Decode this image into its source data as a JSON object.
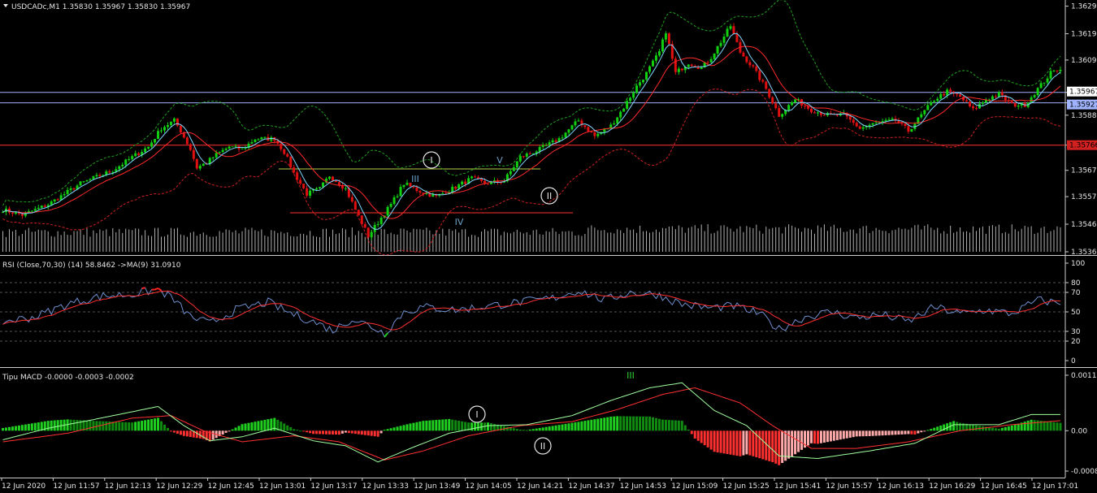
{
  "colors": {
    "background": "#000000",
    "bull_candle": "#10d010",
    "bear_candle": "#e01010",
    "ma_fast": "#7fd7ff",
    "ma_slow": "#ff2a2a",
    "band_upper": "#1fa01f",
    "band_lower": "#d02020",
    "volume": "#b0b0b0",
    "rsi_line": "#6f8fd0",
    "rsi_signal": "#ff3030",
    "macd_line": "#a0ffa0",
    "signal_line": "#ff3030",
    "hist_up": "#20d020",
    "hist_down": "#ff3030",
    "wave_label": "#e6e6e6",
    "level_line": "#ff3030",
    "bid_line": "#9fb3ff",
    "ask_line": "#9fb3ff"
  },
  "header": {
    "main": "USDCADc,M1  1.35830 1.35967 1.35830 1.35967",
    "rsi": "RSI (Close,70,30) (14) 58.8462  ->MA(9) 31.0910",
    "macd": "Tipu MACD -0.0000 -0.0003 -0.0002"
  },
  "chart_data": [
    {
      "type": "candlestick",
      "symbol": "USDCADc",
      "timeframe": "M1",
      "ylim": [
        1.3536,
        1.363
      ],
      "y_ticks": [
        "1.36295",
        "1.36190",
        "1.36090",
        "1.35967",
        "1.35927",
        "1.35880",
        "1.35766",
        "1.35670",
        "1.35570",
        "1.35465",
        "1.35360"
      ],
      "price_tags": {
        "bid": "1.35967",
        "ask": "1.35927",
        "level": "1.35766"
      },
      "x_ticks": [
        "12 Jun 2020",
        "12 Jun 11:57",
        "12 Jun 12:13",
        "12 Jun 12:29",
        "12 Jun 12:45",
        "12 Jun 13:01",
        "12 Jun 13:17",
        "12 Jun 13:33",
        "12 Jun 13:49",
        "12 Jun 14:05",
        "12 Jun 14:21",
        "12 Jun 14:37",
        "12 Jun 14:53",
        "12 Jun 15:09",
        "12 Jun 15:25",
        "12 Jun 15:41",
        "12 Jun 15:57",
        "12 Jun 16:13",
        "12 Jun 16:29",
        "12 Jun 16:45",
        "12 Jun 17:01"
      ],
      "wave_labels": [
        "I",
        "II",
        "III",
        "IV",
        "V"
      ],
      "close_path": [
        [
          0,
          1.3552
        ],
        [
          6,
          1.355
        ],
        [
          14,
          1.3554
        ],
        [
          24,
          1.3562
        ],
        [
          34,
          1.3567
        ],
        [
          40,
          1.3572
        ],
        [
          45,
          1.3576
        ],
        [
          49,
          1.3583
        ],
        [
          53,
          1.3586
        ],
        [
          55,
          1.3582
        ],
        [
          58,
          1.3575
        ],
        [
          60,
          1.3568
        ],
        [
          63,
          1.357
        ],
        [
          66,
          1.3573
        ],
        [
          70,
          1.3576
        ],
        [
          74,
          1.3575
        ],
        [
          78,
          1.3579
        ],
        [
          84,
          1.3579
        ],
        [
          87,
          1.3574
        ],
        [
          90,
          1.3566
        ],
        [
          94,
          1.3558
        ],
        [
          98,
          1.356
        ],
        [
          101,
          1.3565
        ],
        [
          106,
          1.356
        ],
        [
          109,
          1.3552
        ],
        [
          113,
          1.3542
        ],
        [
          117,
          1.3549
        ],
        [
          120,
          1.3554
        ],
        [
          124,
          1.3562
        ],
        [
          129,
          1.3559
        ],
        [
          134,
          1.3557
        ],
        [
          139,
          1.356
        ],
        [
          145,
          1.3564
        ],
        [
          149,
          1.3562
        ],
        [
          155,
          1.3563
        ],
        [
          160,
          1.3572
        ],
        [
          166,
          1.3575
        ],
        [
          172,
          1.3579
        ],
        [
          178,
          1.3586
        ],
        [
          183,
          1.358
        ],
        [
          188,
          1.3584
        ],
        [
          192,
          1.3591
        ],
        [
          196,
          1.3599
        ],
        [
          199,
          1.3604
        ],
        [
          203,
          1.3612
        ],
        [
          205,
          1.362
        ],
        [
          208,
          1.3604
        ],
        [
          212,
          1.3608
        ],
        [
          216,
          1.3606
        ],
        [
          219,
          1.361
        ],
        [
          222,
          1.3616
        ],
        [
          225,
          1.3622
        ],
        [
          228,
          1.3612
        ],
        [
          232,
          1.3606
        ],
        [
          236,
          1.3598
        ],
        [
          240,
          1.3588
        ],
        [
          245,
          1.3594
        ],
        [
          250,
          1.359
        ],
        [
          255,
          1.3588
        ],
        [
          260,
          1.3588
        ],
        [
          265,
          1.3583
        ],
        [
          270,
          1.3585
        ],
        [
          276,
          1.3586
        ],
        [
          280,
          1.3582
        ],
        [
          284,
          1.3588
        ],
        [
          288,
          1.3594
        ],
        [
          292,
          1.3597
        ],
        [
          296,
          1.3595
        ],
        [
          300,
          1.359
        ],
        [
          304,
          1.3594
        ],
        [
          308,
          1.3596
        ],
        [
          312,
          1.3592
        ],
        [
          316,
          1.3592
        ],
        [
          320,
          1.3598
        ],
        [
          324,
          1.3604
        ],
        [
          327,
          1.3606
        ]
      ]
    },
    {
      "type": "line",
      "title": "RSI (Close,70,30) (14) 58.8462  ->MA(9) 31.0910",
      "ylim": [
        0,
        100
      ],
      "y_ticks": [
        "100",
        "80",
        "70",
        "50",
        "30",
        "20",
        "0"
      ],
      "levels": [
        80,
        70,
        50,
        30,
        20
      ],
      "rsi_path": [
        [
          0,
          40
        ],
        [
          10,
          45
        ],
        [
          20,
          58
        ],
        [
          30,
          66
        ],
        [
          40,
          68
        ],
        [
          48,
          73
        ],
        [
          52,
          65
        ],
        [
          58,
          45
        ],
        [
          64,
          38
        ],
        [
          72,
          52
        ],
        [
          82,
          60
        ],
        [
          88,
          50
        ],
        [
          96,
          40
        ],
        [
          102,
          31
        ],
        [
          108,
          43
        ],
        [
          114,
          35
        ],
        [
          118,
          28
        ],
        [
          124,
          50
        ],
        [
          130,
          55
        ],
        [
          140,
          52
        ],
        [
          150,
          56
        ],
        [
          160,
          60
        ],
        [
          170,
          64
        ],
        [
          178,
          72
        ],
        [
          186,
          62
        ],
        [
          194,
          70
        ],
        [
          202,
          68
        ],
        [
          210,
          58
        ],
        [
          218,
          54
        ],
        [
          226,
          56
        ],
        [
          234,
          48
        ],
        [
          240,
          32
        ],
        [
          248,
          45
        ],
        [
          256,
          50
        ],
        [
          264,
          44
        ],
        [
          272,
          47
        ],
        [
          280,
          40
        ],
        [
          288,
          55
        ],
        [
          296,
          48
        ],
        [
          304,
          52
        ],
        [
          312,
          48
        ],
        [
          320,
          62
        ],
        [
          327,
          59
        ]
      ]
    },
    {
      "type": "bar+line",
      "title": "Tipu MACD -0.0000 -0.0003 -0.0002",
      "ylim": [
        -0.0008,
        0.0011
      ],
      "y_ticks": [
        "0.0011",
        "0.00",
        "-0.0008"
      ],
      "macd_path": [
        [
          0,
          -0.00018
        ],
        [
          14,
          5e-05
        ],
        [
          28,
          0.00022
        ],
        [
          48,
          0.00048
        ],
        [
          56,
          0.0001
        ],
        [
          64,
          -0.0002
        ],
        [
          74,
          -0.00012
        ],
        [
          84,
          5e-05
        ],
        [
          96,
          -0.0002
        ],
        [
          106,
          -0.0003
        ],
        [
          116,
          -0.00062
        ],
        [
          126,
          -0.00035
        ],
        [
          138,
          -5e-05
        ],
        [
          150,
          0.0001
        ],
        [
          162,
          0.00012
        ],
        [
          176,
          0.0003
        ],
        [
          188,
          0.0006
        ],
        [
          200,
          0.00085
        ],
        [
          210,
          0.00095
        ],
        [
          220,
          0.0004
        ],
        [
          230,
          0.0001
        ],
        [
          240,
          -0.0005
        ],
        [
          252,
          -0.00055
        ],
        [
          268,
          -0.0004
        ],
        [
          282,
          -0.00025
        ],
        [
          294,
          0.00012
        ],
        [
          308,
          0.00012
        ],
        [
          318,
          0.00032
        ],
        [
          327,
          0.00032
        ]
      ],
      "signal_path": [
        [
          0,
          -0.00022
        ],
        [
          20,
          -5e-05
        ],
        [
          40,
          0.00025
        ],
        [
          52,
          0.0003
        ],
        [
          62,
          0.0
        ],
        [
          74,
          -0.00022
        ],
        [
          90,
          -0.0001
        ],
        [
          104,
          -0.00022
        ],
        [
          118,
          -0.00058
        ],
        [
          130,
          -0.0004
        ],
        [
          144,
          -0.0001
        ],
        [
          160,
          0.0001
        ],
        [
          176,
          0.00018
        ],
        [
          190,
          0.00042
        ],
        [
          204,
          0.00072
        ],
        [
          214,
          0.00085
        ],
        [
          228,
          0.00055
        ],
        [
          238,
          0.0001
        ],
        [
          250,
          -0.00035
        ],
        [
          264,
          -0.00035
        ],
        [
          280,
          -0.00022
        ],
        [
          296,
          0.0
        ],
        [
          312,
          0.00012
        ],
        [
          327,
          0.0002
        ]
      ],
      "wave_labels": [
        "I",
        "II",
        "III"
      ]
    }
  ]
}
